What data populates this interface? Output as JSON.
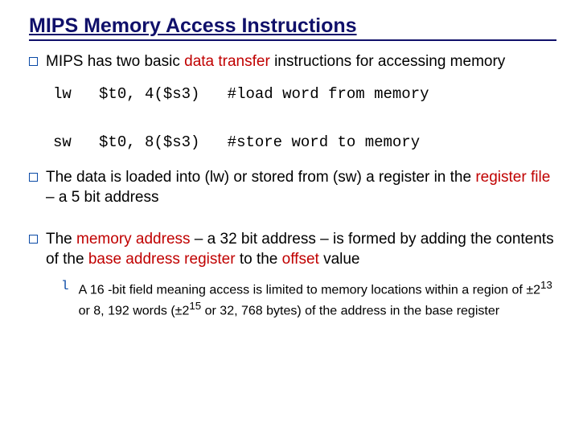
{
  "colors": {
    "title_text": "#10106a",
    "title_underline": "#10106a",
    "bullet_border": "#0a4aa6",
    "body_text": "#000000",
    "highlight": "#c00000",
    "sub_marker": "#0a4aa6"
  },
  "title": "MIPS Memory Access Instructions",
  "bullets": [
    {
      "pre": "MIPS has two basic ",
      "hl": "data transfer",
      "post": " instructions for accessing memory"
    },
    {
      "pre": "The data is loaded into (lw) or stored from (sw) a register in the ",
      "hl": "register file",
      "post": " – a 5 bit address"
    }
  ],
  "bullet3_parts": {
    "p1": "The ",
    "h1": "memory address",
    "p2": " – a 32 bit address – is formed by adding the contents of the ",
    "h2": "base address register",
    "p3": " to the ",
    "h3": "offset",
    "p4": " value"
  },
  "code": {
    "line1_inst": "lw",
    "line1_args": "$t0, 4($s3)",
    "line1_comment": "#load word from memory",
    "line2_inst": "sw",
    "line2_args": "$t0, 8($s3)",
    "line2_comment": "#store word to memory"
  },
  "sub": {
    "marker": "l",
    "p1": "A 16 -bit field meaning access is limited to memory locations within a region of ±2",
    "sup1": "13",
    "p2": " or 8, 192 words (±2",
    "sup2": "15",
    "p3": " or 32, 768 bytes) of the address in the base register"
  }
}
